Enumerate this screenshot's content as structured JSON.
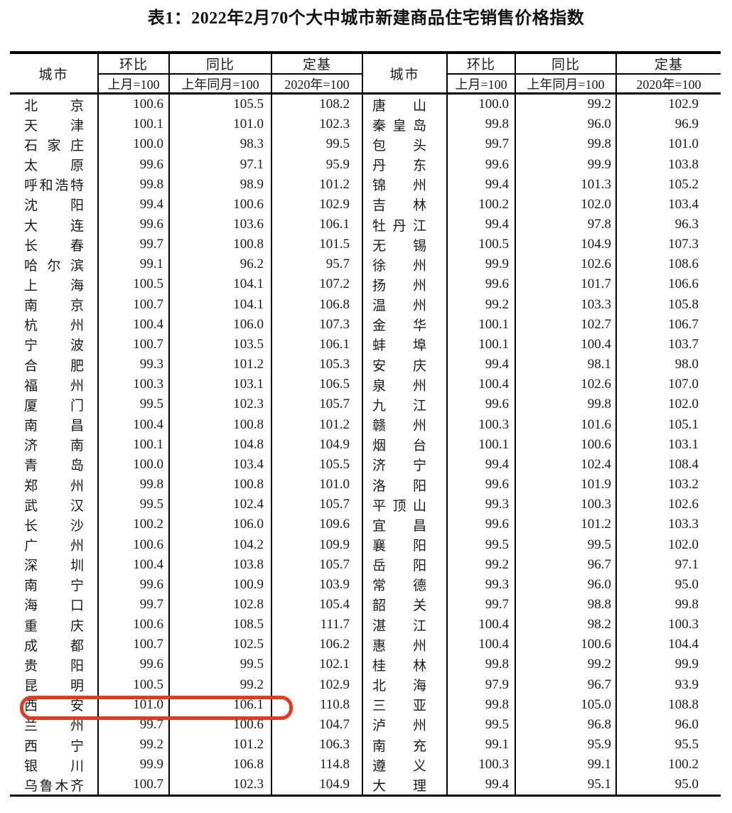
{
  "title": "表1：2022年2月70个大中城市新建商品住宅销售价格指数",
  "header": {
    "city_label": "城市",
    "col_groups": [
      {
        "label": "环比",
        "sub": "上月=100"
      },
      {
        "label": "同比",
        "sub": "上年同月=100"
      },
      {
        "label": "定基",
        "sub": "2020年=100"
      }
    ]
  },
  "row_format": [
    "city",
    "mom_index",
    "yoy_index",
    "fixed_base_index"
  ],
  "rows_left": [
    [
      "北京",
      "100.6",
      "105.5",
      "108.2"
    ],
    [
      "天津",
      "100.1",
      "101.0",
      "102.3"
    ],
    [
      "石家庄",
      "100.0",
      "98.3",
      "99.5"
    ],
    [
      "太原",
      "99.6",
      "97.1",
      "95.9"
    ],
    [
      "呼和浩特",
      "99.8",
      "98.9",
      "101.2"
    ],
    [
      "沈阳",
      "99.4",
      "100.6",
      "102.9"
    ],
    [
      "大连",
      "99.6",
      "103.6",
      "106.1"
    ],
    [
      "长春",
      "99.7",
      "100.8",
      "101.5"
    ],
    [
      "哈尔滨",
      "99.1",
      "96.2",
      "95.7"
    ],
    [
      "上海",
      "100.5",
      "104.1",
      "107.2"
    ],
    [
      "南京",
      "100.7",
      "104.1",
      "106.8"
    ],
    [
      "杭州",
      "100.4",
      "106.0",
      "107.3"
    ],
    [
      "宁波",
      "100.7",
      "103.5",
      "106.1"
    ],
    [
      "合肥",
      "99.3",
      "101.2",
      "105.3"
    ],
    [
      "福州",
      "100.3",
      "103.1",
      "106.5"
    ],
    [
      "厦门",
      "99.5",
      "102.3",
      "105.7"
    ],
    [
      "南昌",
      "100.4",
      "100.8",
      "101.2"
    ],
    [
      "济南",
      "100.1",
      "104.8",
      "104.9"
    ],
    [
      "青岛",
      "100.0",
      "103.4",
      "105.5"
    ],
    [
      "郑州",
      "99.8",
      "100.8",
      "101.0"
    ],
    [
      "武汉",
      "99.5",
      "102.4",
      "105.7"
    ],
    [
      "长沙",
      "100.2",
      "106.0",
      "109.6"
    ],
    [
      "广州",
      "100.6",
      "104.2",
      "109.9"
    ],
    [
      "深圳",
      "100.4",
      "103.8",
      "105.7"
    ],
    [
      "南宁",
      "99.6",
      "100.9",
      "103.9"
    ],
    [
      "海口",
      "99.7",
      "102.8",
      "105.4"
    ],
    [
      "重庆",
      "100.6",
      "108.5",
      "111.7"
    ],
    [
      "成都",
      "100.7",
      "102.5",
      "106.2"
    ],
    [
      "贵阳",
      "99.6",
      "99.5",
      "102.1"
    ],
    [
      "昆明",
      "100.5",
      "99.2",
      "102.9"
    ],
    [
      "西安",
      "101.0",
      "106.1",
      "110.8"
    ],
    [
      "兰州",
      "99.7",
      "100.6",
      "104.7"
    ],
    [
      "西宁",
      "99.2",
      "101.2",
      "106.3"
    ],
    [
      "银川",
      "99.9",
      "106.8",
      "114.8"
    ],
    [
      "乌鲁木齐",
      "100.7",
      "102.3",
      "104.9"
    ]
  ],
  "rows_right": [
    [
      "唐山",
      "100.0",
      "99.2",
      "102.9"
    ],
    [
      "秦皇岛",
      "99.8",
      "96.0",
      "96.9"
    ],
    [
      "包头",
      "99.7",
      "99.8",
      "101.0"
    ],
    [
      "丹东",
      "99.6",
      "99.9",
      "103.8"
    ],
    [
      "锦州",
      "99.4",
      "101.3",
      "105.2"
    ],
    [
      "吉林",
      "100.2",
      "102.0",
      "103.4"
    ],
    [
      "牡丹江",
      "99.4",
      "97.8",
      "96.3"
    ],
    [
      "无锡",
      "100.5",
      "104.9",
      "107.3"
    ],
    [
      "徐州",
      "99.9",
      "102.6",
      "108.6"
    ],
    [
      "扬州",
      "99.6",
      "101.7",
      "106.6"
    ],
    [
      "温州",
      "99.2",
      "103.3",
      "105.8"
    ],
    [
      "金华",
      "100.1",
      "102.7",
      "106.7"
    ],
    [
      "蚌埠",
      "100.1",
      "100.4",
      "103.7"
    ],
    [
      "安庆",
      "99.4",
      "98.1",
      "98.0"
    ],
    [
      "泉州",
      "100.4",
      "102.6",
      "107.0"
    ],
    [
      "九江",
      "99.6",
      "99.8",
      "102.0"
    ],
    [
      "赣州",
      "100.3",
      "101.6",
      "105.1"
    ],
    [
      "烟台",
      "100.1",
      "100.6",
      "103.1"
    ],
    [
      "济宁",
      "99.4",
      "102.4",
      "108.4"
    ],
    [
      "洛阳",
      "99.6",
      "101.9",
      "103.2"
    ],
    [
      "平顶山",
      "99.3",
      "100.3",
      "102.6"
    ],
    [
      "宜昌",
      "99.6",
      "101.2",
      "103.3"
    ],
    [
      "襄阳",
      "99.5",
      "99.5",
      "102.0"
    ],
    [
      "岳阳",
      "99.2",
      "96.7",
      "97.1"
    ],
    [
      "常德",
      "99.3",
      "96.0",
      "95.0"
    ],
    [
      "韶关",
      "99.7",
      "98.8",
      "99.8"
    ],
    [
      "湛江",
      "100.4",
      "98.2",
      "100.3"
    ],
    [
      "惠州",
      "100.4",
      "100.6",
      "104.4"
    ],
    [
      "桂林",
      "99.8",
      "99.2",
      "99.9"
    ],
    [
      "北海",
      "97.9",
      "96.7",
      "93.9"
    ],
    [
      "三亚",
      "99.8",
      "105.0",
      "108.8"
    ],
    [
      "泸州",
      "99.5",
      "96.8",
      "96.0"
    ],
    [
      "南充",
      "99.1",
      "95.9",
      "95.5"
    ],
    [
      "遵义",
      "100.3",
      "99.1",
      "100.2"
    ],
    [
      "大理",
      "99.4",
      "95.1",
      "95.0"
    ]
  ],
  "highlight": {
    "city": "西安",
    "columns_covered": [
      "城市",
      "环比",
      "同比"
    ],
    "color": "#e03b21"
  },
  "colors": {
    "border": "#000000",
    "text": "#1a1a1a",
    "background": "#ffffff"
  }
}
